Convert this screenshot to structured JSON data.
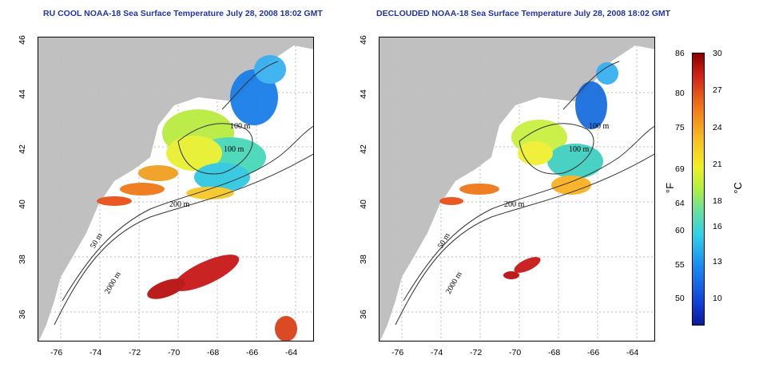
{
  "titles": {
    "left": "RU COOL NOAA-18 Sea Surface Temperature July 28, 2008 18:02 GMT",
    "right": "DECLOUDED NOAA-18 Sea Surface Temperature July 28, 2008 18:02 GMT"
  },
  "axes": {
    "lat_ticks": [
      "46",
      "44",
      "42",
      "40",
      "38",
      "36"
    ],
    "lon_ticks": [
      "-76",
      "-74",
      "-72",
      "-70",
      "-68",
      "-66",
      "-64"
    ]
  },
  "contours": {
    "c100": "100 m",
    "c100b": "100 m",
    "c50": "50 m",
    "c200": "200 m",
    "c50b": "50 m",
    "c2000": "2000 m"
  },
  "colorbar": {
    "fahrenheit_unit": "°F",
    "celsius_unit": "°C",
    "fahrenheit_ticks": [
      "86",
      "80",
      "75",
      "69",
      "64",
      "60",
      "55",
      "50"
    ],
    "celsius_ticks": [
      "30",
      "27",
      "24",
      "21",
      "18",
      "16",
      "13",
      "10"
    ]
  },
  "colors": {
    "land": "#c0c0c0",
    "ocean": "#ffffff",
    "title_text": "#2233aa",
    "contour": "#333333",
    "grid": "#bbbbbb"
  }
}
